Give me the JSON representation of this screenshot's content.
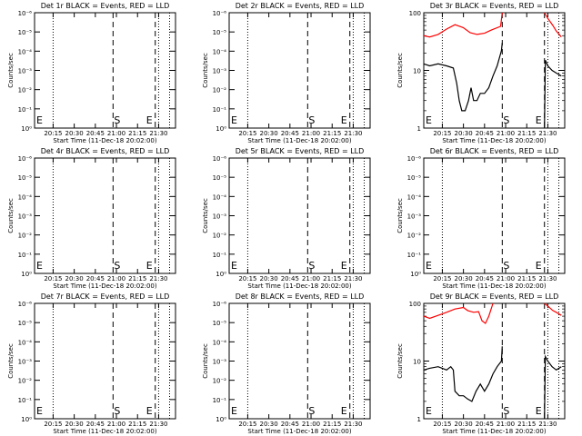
{
  "chart_data": [
    {
      "type": "line",
      "title": "Det 1r BLACK = Events, RED = LLD",
      "xlabel": "Start Time (11-Dec-18 20:02:00)",
      "ylabel": "Counts/sec",
      "y_scale": "log",
      "y_tick_labels": [
        "10⁰",
        "10⁻¹",
        "10⁻²",
        "10⁻³",
        "10⁻⁴",
        "10⁻⁵",
        "10⁻⁶"
      ],
      "x_tick_labels": [
        "20:15",
        "20:30",
        "20:45",
        "21:00",
        "21:15",
        "21:30"
      ],
      "markers": [
        "E",
        "S",
        "E"
      ],
      "series": []
    },
    {
      "type": "line",
      "title": "Det 2r BLACK = Events, RED = LLD",
      "xlabel": "Start Time (11-Dec-18 20:02:00)",
      "ylabel": "Counts/sec",
      "y_scale": "log",
      "y_tick_labels": [
        "10⁰",
        "10⁻¹",
        "10⁻²",
        "10⁻³",
        "10⁻⁴",
        "10⁻⁵",
        "10⁻⁶"
      ],
      "x_tick_labels": [
        "20:15",
        "20:30",
        "20:45",
        "21:00",
        "21:15",
        "21:30"
      ],
      "markers": [
        "E",
        "S",
        "E"
      ],
      "series": []
    },
    {
      "type": "line",
      "title": "Det 3r BLACK = Events, RED = LLD",
      "xlabel": "Start Time (11-Dec-18 20:02:00)",
      "ylabel": "Counts/sec",
      "y_scale": "log",
      "y_tick_labels": [
        "100",
        "10",
        "1"
      ],
      "x_tick_labels": [
        "20:15",
        "20:30",
        "20:45",
        "21:00",
        "21:15",
        "21:30"
      ],
      "markers": [
        "E",
        "S",
        "E"
      ],
      "series": [
        {
          "color": "#ff0000",
          "points": [
            [
              20.03,
              40
            ],
            [
              20.1,
              38
            ],
            [
              20.2,
              42
            ],
            [
              20.3,
              52
            ],
            [
              20.4,
              62
            ],
            [
              20.5,
              55
            ],
            [
              20.58,
              45
            ],
            [
              20.66,
              42
            ],
            [
              20.75,
              44
            ],
            [
              20.83,
              50
            ],
            [
              20.94,
              58
            ],
            [
              20.96,
              100
            ],
            [
              21.46,
              100
            ],
            [
              21.5,
              80
            ],
            [
              21.56,
              60
            ],
            [
              21.6,
              48
            ],
            [
              21.66,
              38
            ]
          ]
        },
        {
          "color": "#000000",
          "points": [
            [
              20.03,
              13
            ],
            [
              20.1,
              12
            ],
            [
              20.2,
              13
            ],
            [
              20.3,
              12
            ],
            [
              20.38,
              11
            ],
            [
              20.42,
              6
            ],
            [
              20.45,
              3
            ],
            [
              20.48,
              2
            ],
            [
              20.52,
              2
            ],
            [
              20.56,
              3
            ],
            [
              20.59,
              5
            ],
            [
              20.62,
              3
            ],
            [
              20.66,
              3
            ],
            [
              20.7,
              4
            ],
            [
              20.75,
              4
            ],
            [
              20.8,
              5
            ],
            [
              20.85,
              8
            ],
            [
              20.9,
              12
            ],
            [
              20.95,
              22
            ],
            [
              20.96,
              30
            ],
            [
              21.46,
              1
            ],
            [
              21.47,
              15
            ],
            [
              21.5,
              12
            ],
            [
              21.55,
              10
            ],
            [
              21.6,
              9
            ],
            [
              21.66,
              8
            ]
          ]
        }
      ]
    },
    {
      "type": "line",
      "title": "Det 4r BLACK = Events, RED = LLD",
      "xlabel": "Start Time (11-Dec-18 20:02:00)",
      "ylabel": "Counts/sec",
      "y_scale": "log",
      "y_tick_labels": [
        "10⁰",
        "10⁻¹",
        "10⁻²",
        "10⁻³",
        "10⁻⁴",
        "10⁻⁵",
        "10⁻⁶"
      ],
      "x_tick_labels": [
        "20:15",
        "20:30",
        "20:45",
        "21:00",
        "21:15",
        "21:30"
      ],
      "markers": [
        "E",
        "S",
        "E"
      ],
      "series": []
    },
    {
      "type": "line",
      "title": "Det 5r BLACK = Events, RED = LLD",
      "xlabel": "Start Time (11-Dec-18 20:02:00)",
      "ylabel": "Counts/sec",
      "y_scale": "log",
      "y_tick_labels": [
        "10⁰",
        "10⁻¹",
        "10⁻²",
        "10⁻³",
        "10⁻⁴",
        "10⁻⁵",
        "10⁻⁶"
      ],
      "x_tick_labels": [
        "20:15",
        "20:30",
        "20:45",
        "21:00",
        "21:15",
        "21:30"
      ],
      "markers": [
        "E",
        "S",
        "E"
      ],
      "series": []
    },
    {
      "type": "line",
      "title": "Det 6r BLACK = Events, RED = LLD",
      "xlabel": "Start Time (11-Dec-18 20:02:00)",
      "ylabel": "Counts/sec",
      "y_scale": "log",
      "y_tick_labels": [
        "10⁰",
        "10⁻¹",
        "10⁻²",
        "10⁻³",
        "10⁻⁴",
        "10⁻⁵",
        "10⁻⁶"
      ],
      "x_tick_labels": [
        "20:15",
        "20:30",
        "20:45",
        "21:00",
        "21:15",
        "21:30"
      ],
      "markers": [
        "E",
        "S",
        "E"
      ],
      "series": []
    },
    {
      "type": "line",
      "title": "Det 7r BLACK = Events, RED = LLD",
      "xlabel": "Start Time (11-Dec-18 20:02:00)",
      "ylabel": "Counts/sec",
      "y_scale": "log",
      "y_tick_labels": [
        "10⁰",
        "10⁻¹",
        "10⁻²",
        "10⁻³",
        "10⁻⁴",
        "10⁻⁵",
        "10⁻⁶"
      ],
      "x_tick_labels": [
        "20:15",
        "20:30",
        "20:45",
        "21:00",
        "21:15",
        "21:30"
      ],
      "markers": [
        "E",
        "S",
        "E"
      ],
      "series": []
    },
    {
      "type": "line",
      "title": "Det 8r BLACK = Events, RED = LLD",
      "xlabel": "Start Time (11-Dec-18 20:02:00)",
      "ylabel": "Counts/sec",
      "y_scale": "log",
      "y_tick_labels": [
        "10⁰",
        "10⁻¹",
        "10⁻²",
        "10⁻³",
        "10⁻⁴",
        "10⁻⁵",
        "10⁻⁶"
      ],
      "x_tick_labels": [
        "20:15",
        "20:30",
        "20:45",
        "21:00",
        "21:15",
        "21:30"
      ],
      "markers": [
        "E",
        "S",
        "E"
      ],
      "series": []
    },
    {
      "type": "line",
      "title": "Det 9r BLACK = Events, RED = LLD",
      "xlabel": "Start Time (11-Dec-18 20:02:00)",
      "ylabel": "Counts/sec",
      "y_scale": "log",
      "y_tick_labels": [
        "100",
        "10",
        "1"
      ],
      "x_tick_labels": [
        "20:15",
        "20:30",
        "20:45",
        "21:00",
        "21:15",
        "21:30"
      ],
      "markers": [
        "E",
        "S",
        "E"
      ],
      "series": [
        {
          "color": "#ff0000",
          "points": [
            [
              20.03,
              60
            ],
            [
              20.1,
              55
            ],
            [
              20.2,
              62
            ],
            [
              20.3,
              70
            ],
            [
              20.4,
              80
            ],
            [
              20.5,
              85
            ],
            [
              20.55,
              75
            ],
            [
              20.62,
              70
            ],
            [
              20.68,
              72
            ],
            [
              20.72,
              50
            ],
            [
              20.76,
              45
            ],
            [
              20.8,
              60
            ],
            [
              20.85,
              100
            ],
            [
              21.46,
              100
            ],
            [
              21.5,
              90
            ],
            [
              21.56,
              75
            ],
            [
              21.6,
              70
            ],
            [
              21.66,
              62
            ]
          ]
        },
        {
          "color": "#000000",
          "points": [
            [
              20.03,
              7
            ],
            [
              20.1,
              7.5
            ],
            [
              20.2,
              8
            ],
            [
              20.3,
              7
            ],
            [
              20.35,
              8
            ],
            [
              20.38,
              7
            ],
            [
              20.4,
              3
            ],
            [
              20.45,
              2.5
            ],
            [
              20.5,
              2.5
            ],
            [
              20.55,
              2.2
            ],
            [
              20.6,
              2
            ],
            [
              20.65,
              3
            ],
            [
              20.7,
              4
            ],
            [
              20.75,
              3
            ],
            [
              20.8,
              4
            ],
            [
              20.85,
              6
            ],
            [
              20.9,
              8
            ],
            [
              20.95,
              10
            ],
            [
              20.96,
              18
            ],
            [
              21.46,
              1
            ],
            [
              21.47,
              12
            ],
            [
              21.5,
              10
            ],
            [
              21.55,
              8
            ],
            [
              21.6,
              7
            ],
            [
              21.66,
              8
            ]
          ]
        }
      ]
    }
  ]
}
